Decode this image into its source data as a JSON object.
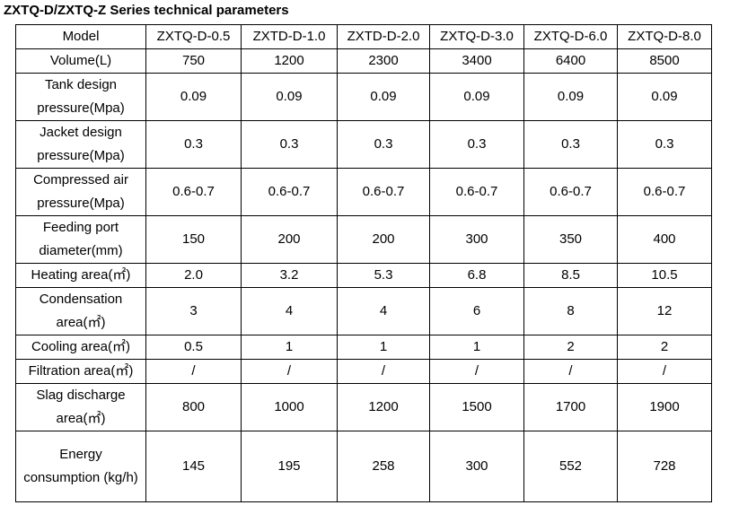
{
  "title": "ZXTQ-D/ZXTQ-Z Series technical parameters",
  "table": {
    "rows": [
      [
        "Model",
        "ZXTQ-D-0.5",
        "ZXTD-D-1.0",
        "ZXTD-D-2.0",
        "ZXTQ-D-3.0",
        "ZXTQ-D-6.0",
        "ZXTQ-D-8.0"
      ],
      [
        "Volume(L)",
        "750",
        "1200",
        "2300",
        "3400",
        "6400",
        "8500"
      ],
      [
        "Tank design pressure(Mpa)",
        "0.09",
        "0.09",
        "0.09",
        "0.09",
        "0.09",
        "0.09"
      ],
      [
        "Jacket design pressure(Mpa)",
        "0.3",
        "0.3",
        "0.3",
        "0.3",
        "0.3",
        "0.3"
      ],
      [
        "Compressed air pressure(Mpa)",
        "0.6-0.7",
        "0.6-0.7",
        "0.6-0.7",
        "0.6-0.7",
        "0.6-0.7",
        "0.6-0.7"
      ],
      [
        "Feeding port diameter(mm)",
        "150",
        "200",
        "200",
        "300",
        "350",
        "400"
      ],
      [
        "Heating area(㎡)",
        "2.0",
        "3.2",
        "5.3",
        "6.8",
        "8.5",
        "10.5"
      ],
      [
        "Condensation area(㎡)",
        "3",
        "4",
        "4",
        "6",
        "8",
        "12"
      ],
      [
        "Cooling area(㎡)",
        "0.5",
        "1",
        "1",
        "1",
        "2",
        "2"
      ],
      [
        "Filtration area(㎡)",
        "/",
        "/",
        "/",
        "/",
        "/",
        "/"
      ],
      [
        "Slag discharge area(㎡)",
        "800",
        "1000",
        "1200",
        "1500",
        "1700",
        "1900"
      ],
      [
        "Energy consumption (kg/h)",
        "145",
        "195",
        "258",
        "300",
        "552",
        "728"
      ]
    ]
  }
}
